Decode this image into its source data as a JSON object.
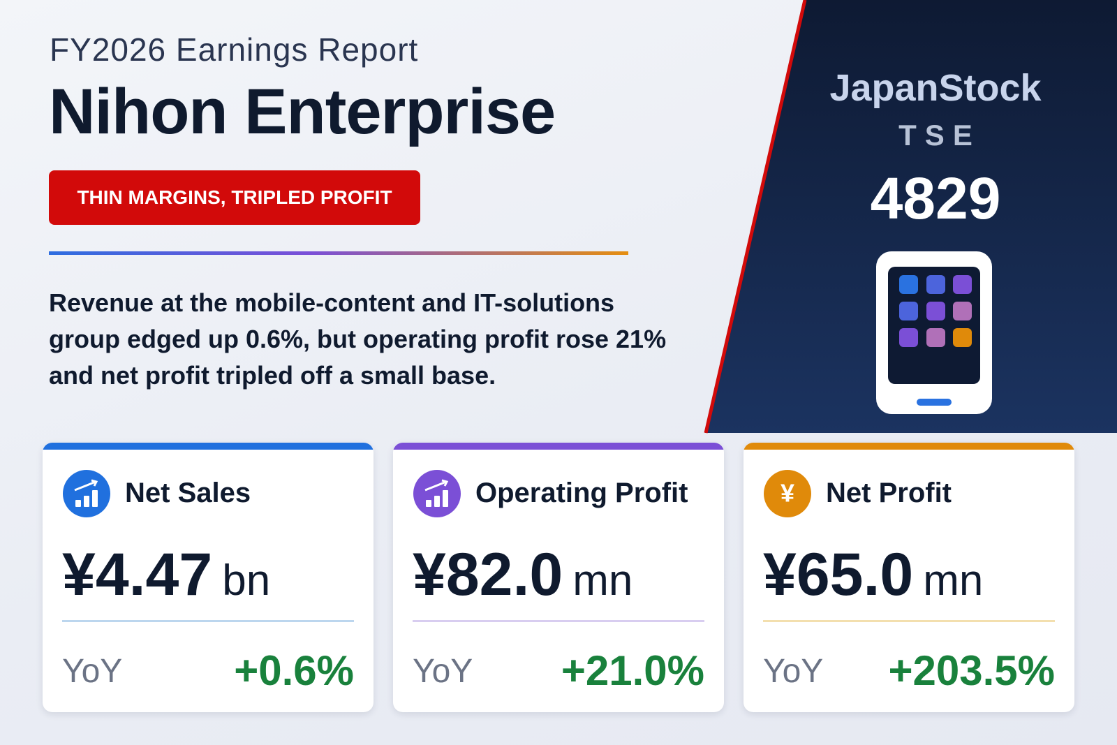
{
  "header": {
    "subtitle": "FY2026 Earnings Report",
    "title": "Nihon Enterprise",
    "badge": "THIN MARGINS, TRIPLED PROFIT"
  },
  "description": "Revenue at the mobile-content and IT-solutions group edged up 0.6%, but operating profit rose 21% and net profit tripled off a small base.",
  "brand": {
    "name": "JapanStock",
    "exchange": "TSE",
    "code": "4829"
  },
  "cards": [
    {
      "title": "Net Sales",
      "amount": "¥4.47",
      "unit": "bn",
      "yoy_label": "YoY",
      "yoy": "+0.6%"
    },
    {
      "title": "Operating Profit",
      "amount": "¥82.0",
      "unit": "mn",
      "yoy_label": "YoY",
      "yoy": "+21.0%"
    },
    {
      "title": "Net Profit",
      "icon_text": "¥",
      "amount": "¥65.0",
      "unit": "mn",
      "yoy_label": "YoY",
      "yoy": "+203.5%"
    }
  ]
}
